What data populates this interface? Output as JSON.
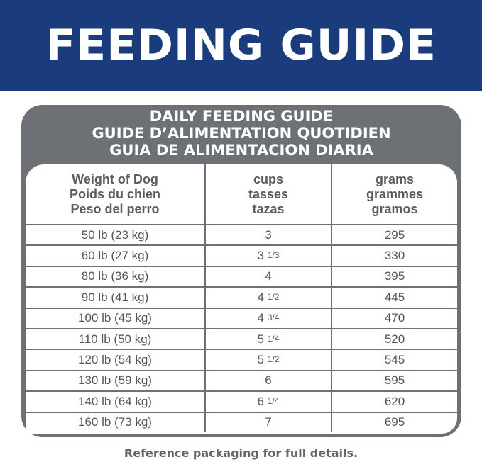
{
  "banner": {
    "title": "FEEDING GUIDE",
    "color": "#1b3c7c"
  },
  "table": {
    "titles": [
      "DAILY FEEDING GUIDE",
      "GUIDE D’ALIMENTATION QUOTIDIEN",
      "GUIA DE ALIMENTACION DIARIA"
    ],
    "headers": [
      [
        "Weight of Dog",
        "Poids du chien",
        "Peso del perro"
      ],
      [
        "cups",
        "tasses",
        "tazas"
      ],
      [
        "grams",
        "grammes",
        "gramos"
      ]
    ],
    "rows": [
      {
        "weight": "50 lb (23 kg)",
        "cups": "3",
        "cups_frac": "",
        "grams": "295"
      },
      {
        "weight": "60 lb (27 kg)",
        "cups": "3",
        "cups_frac": "1/3",
        "grams": "330"
      },
      {
        "weight": "80 lb (36 kg)",
        "cups": "4",
        "cups_frac": "",
        "grams": "395"
      },
      {
        "weight": "90 lb (41 kg)",
        "cups": "4",
        "cups_frac": "1/2",
        "grams": "445"
      },
      {
        "weight": "100 lb (45 kg)",
        "cups": "4",
        "cups_frac": "3/4",
        "grams": "470"
      },
      {
        "weight": "110 lb (50 kg)",
        "cups": "5",
        "cups_frac": "1/4",
        "grams": "520"
      },
      {
        "weight": "120 lb (54 kg)",
        "cups": "5",
        "cups_frac": "1/2",
        "grams": "545"
      },
      {
        "weight": "130 lb (59 kg)",
        "cups": "6",
        "cups_frac": "",
        "grams": "595"
      },
      {
        "weight": "140 lb (64 kg)",
        "cups": "6",
        "cups_frac": "1/4",
        "grams": "620"
      },
      {
        "weight": "160 lb (73 kg)",
        "cups": "7",
        "cups_frac": "",
        "grams": "695"
      }
    ]
  },
  "footer": "Reference packaging for full details."
}
